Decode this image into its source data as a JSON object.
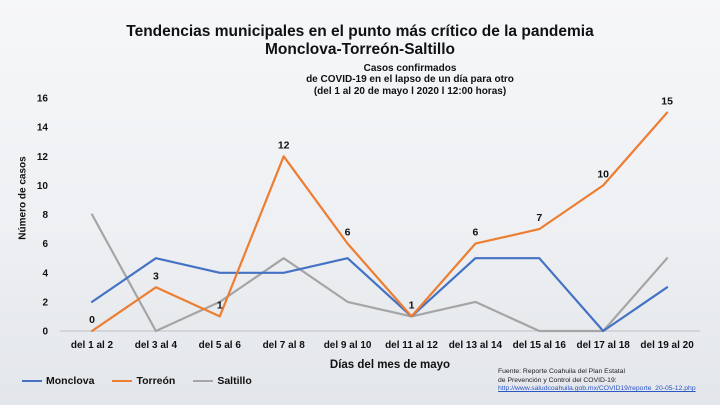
{
  "header": {
    "title_line1": "Tendencias municipales en el  punto más crítico de la pandemia",
    "title_line2": "Monclova-Torreón-Saltillo",
    "subtitle_line1": "Casos confirmados",
    "subtitle_line2": "de COVID-19 en el lapso de un día para otro",
    "subtitle_line3": "(del 1 al 20 de mayo l 2020 l 12:00 horas)"
  },
  "source": {
    "line1": "Fuente: Reporte Coahuila del Plan Estatal",
    "line2": "de Prevención y Control del COVID-19:",
    "link": "http://www.saludcoahuila.gob.mx/COVID19/reporte_20-05-12.php"
  },
  "chart_data": {
    "type": "line",
    "xlabel": "Días del mes de mayo",
    "ylabel": "Número de casos",
    "ylim": [
      0,
      16
    ],
    "yticks": [
      0,
      2,
      4,
      6,
      8,
      10,
      12,
      14,
      16
    ],
    "grid": false,
    "legend_position": "bottom-left",
    "categories": [
      "del 1 al 2",
      "del 3 al 4",
      "del 5 al 6",
      "del 7 al 8",
      "del 9 al 10",
      "del 11 al 12",
      "del 13 al 14",
      "del 15 al 16",
      "del 17 al 18",
      "del 19 al 20"
    ],
    "series": [
      {
        "name": "Monclova",
        "color": "#4472c4",
        "values": [
          2,
          5,
          4,
          4,
          5,
          1,
          5,
          5,
          0,
          3
        ],
        "labeled": false
      },
      {
        "name": "Torreón",
        "color": "#ed7d31",
        "values": [
          0,
          3,
          1,
          12,
          6,
          1,
          6,
          7,
          10,
          15
        ],
        "labeled": true
      },
      {
        "name": "Saltillo",
        "color": "#a5a5a5",
        "values": [
          8,
          0,
          2,
          5,
          2,
          1,
          2,
          0,
          0,
          5
        ],
        "labeled": false
      }
    ]
  }
}
